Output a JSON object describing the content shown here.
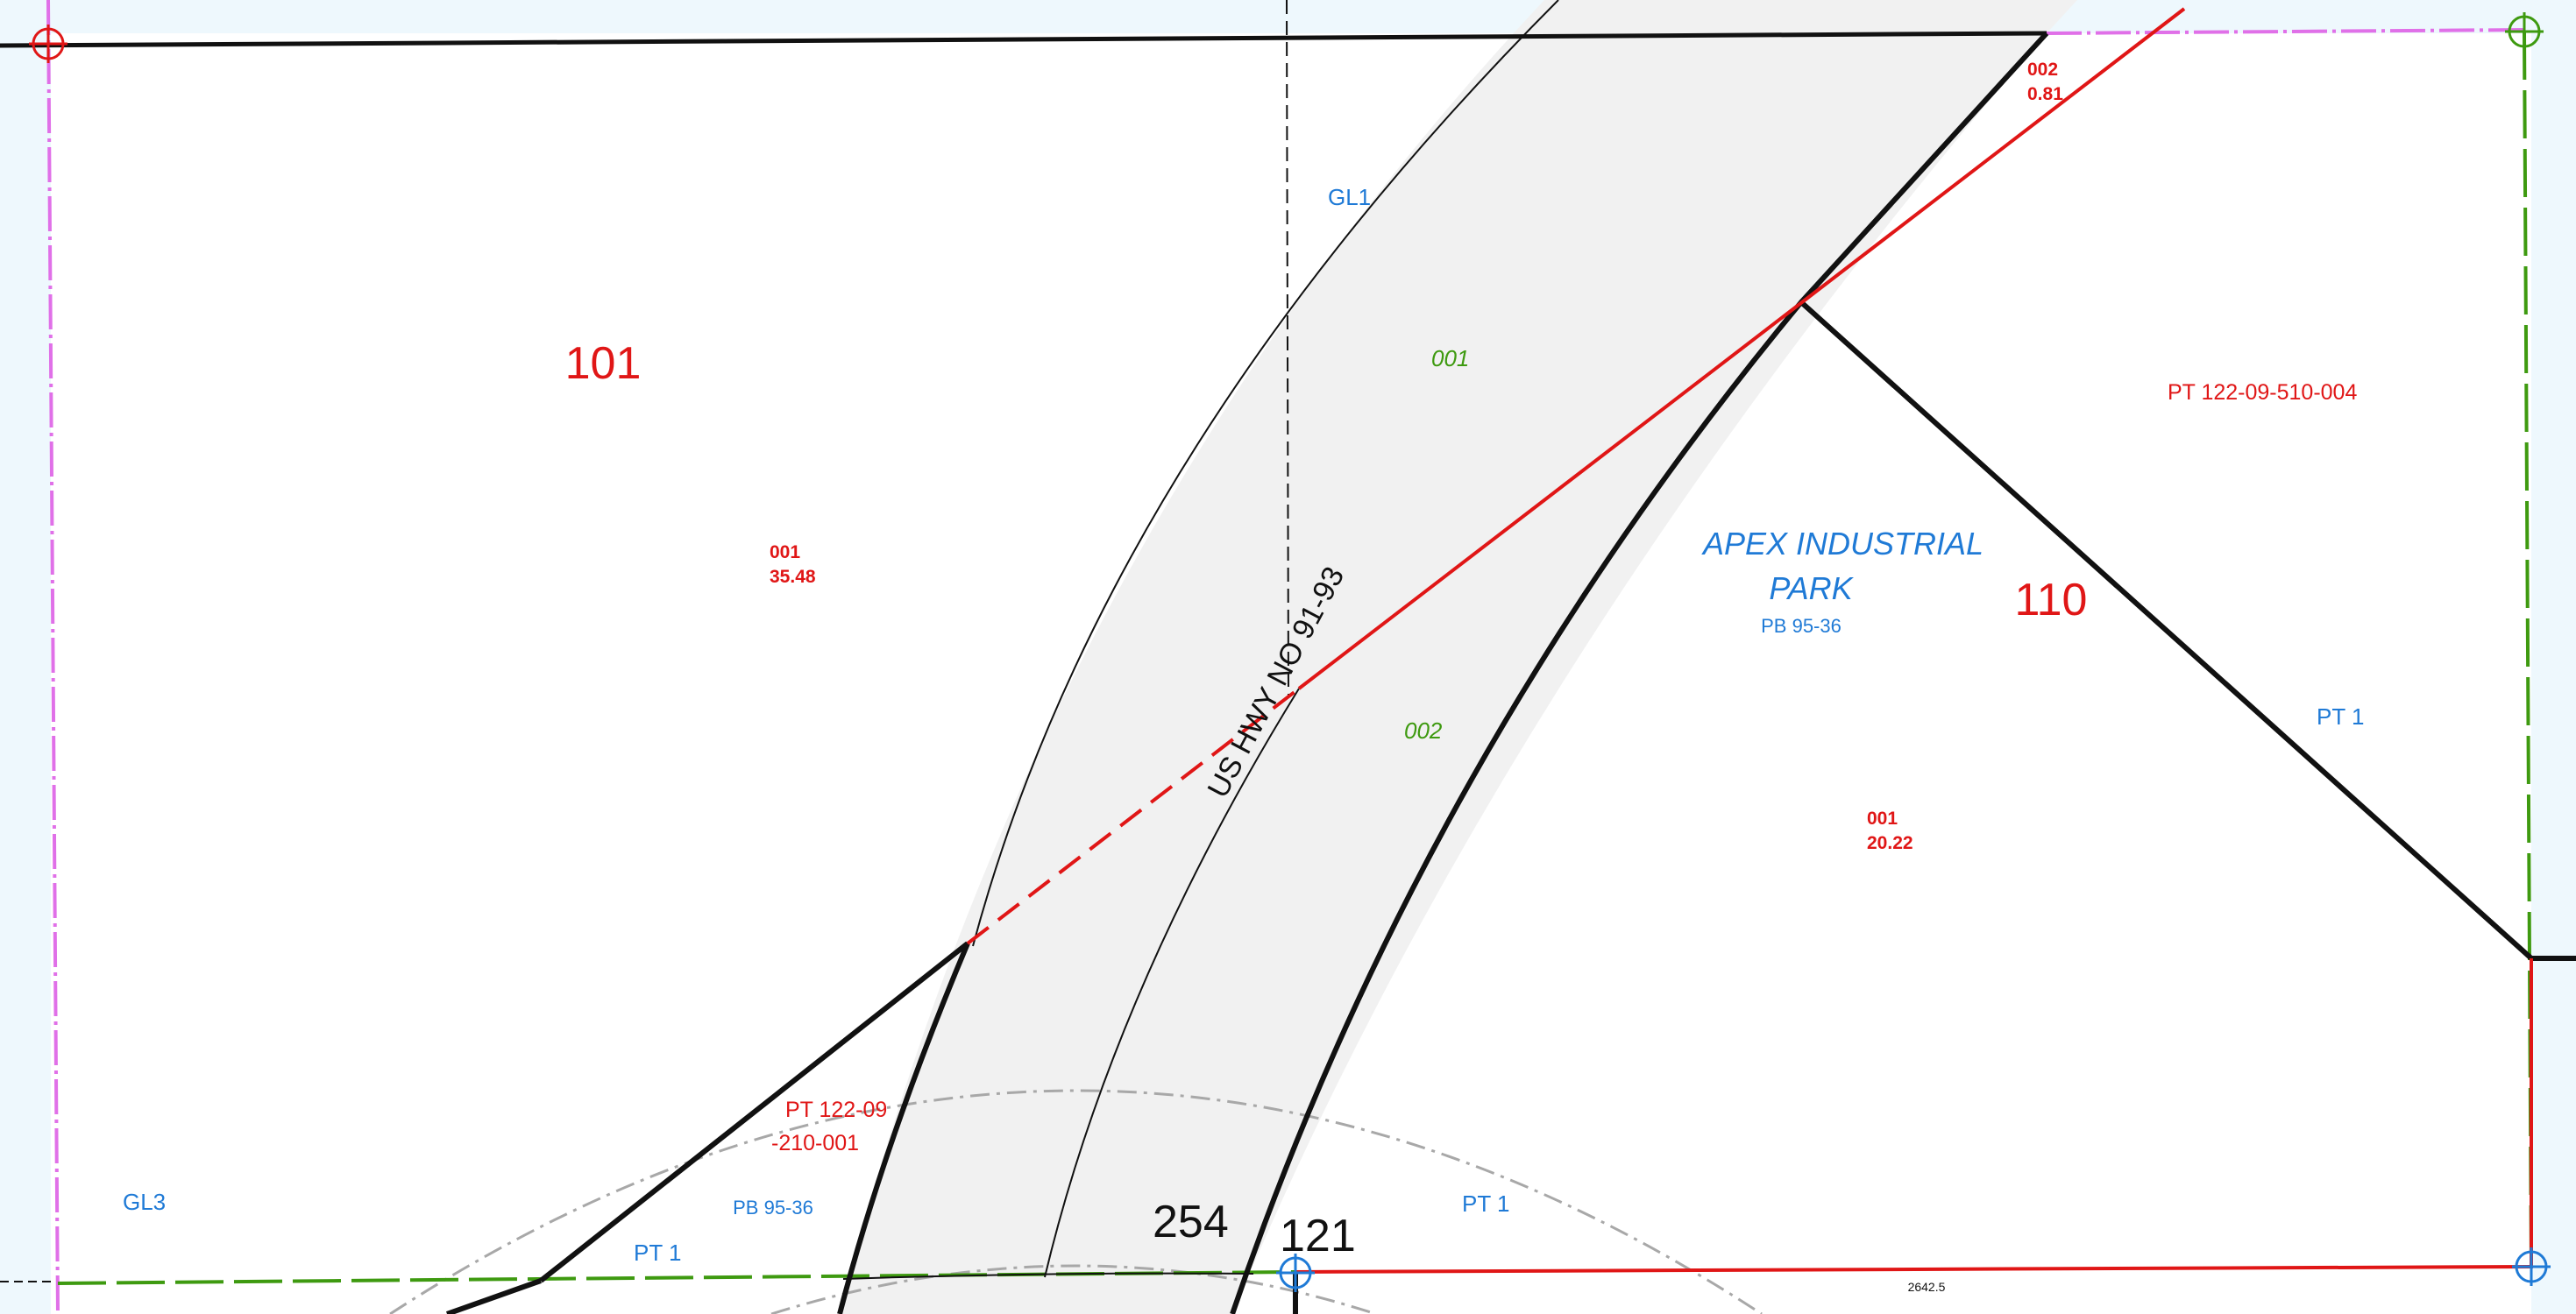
{
  "parcels": {
    "p101": {
      "lot": "101",
      "id": "001",
      "acres": "35.48"
    },
    "p110": {
      "lot": "110",
      "id": "001",
      "acres": "20.22"
    },
    "p002_small": {
      "id": "002",
      "acres": "0.81"
    }
  },
  "highway": {
    "label": "US HWY NO 91-93",
    "segments": [
      "001",
      "002"
    ]
  },
  "blue_labels": {
    "gl1": "GL1",
    "gl3": "GL3",
    "subdivision_line1": "APEX INDUSTRIAL",
    "subdivision_line2": "PARK",
    "plat_book": "PB 95-36",
    "plat_book_2": "PB 95-36",
    "pt1_right": "PT 1",
    "pt1_bottom_left": "PT 1",
    "pt1_bottom_mid": "PT 1"
  },
  "red_labels": {
    "pt_ref_right": "PT 122-09-510-004",
    "pt_ref_left_line1": "PT 122-09",
    "pt_ref_left_line2": "-210-001"
  },
  "black_labels": {
    "block_254": "254",
    "block_121": "121",
    "distance": "2642.5"
  },
  "colors": {
    "background": "#eef8fd",
    "parcel_fill": "#ffffff",
    "highway_fill": "#f1f1f1",
    "parcel_line": "#111111",
    "tax_line": "#e01616",
    "section_line": "#e070e8",
    "quarter_line": "#3e9a10",
    "arc_line": "#a8a8a8",
    "text_red": "#e01616",
    "text_blue": "#1f7ad6",
    "text_green": "#3e9a10"
  },
  "icons": [
    "corner-marker-icon"
  ]
}
